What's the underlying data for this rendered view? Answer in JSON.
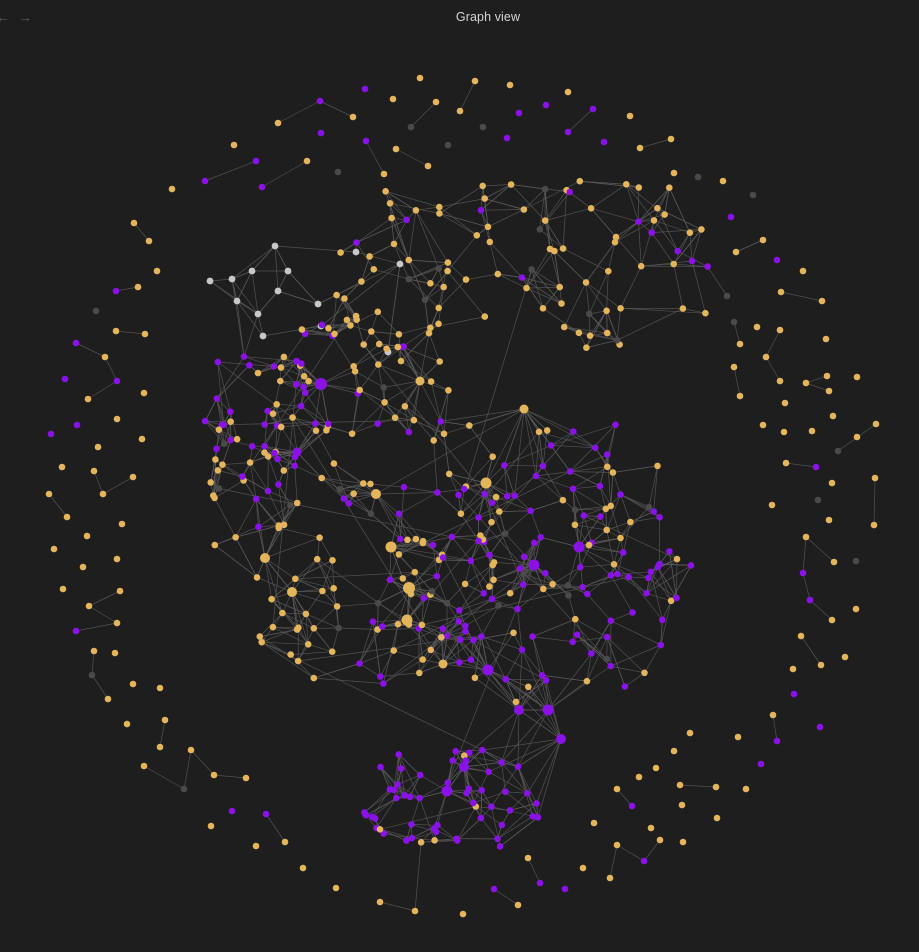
{
  "header": {
    "title": "Graph view",
    "back_icon": "←",
    "forward_icon": "→"
  },
  "legend_colors": {
    "background": "#1e1e1e",
    "edge": "#5a5a5a",
    "node_gold": "#e5b55c",
    "node_purple": "#8a12e8",
    "node_dim": "#4a4a4a",
    "node_light": "#c8c8c8"
  }
}
